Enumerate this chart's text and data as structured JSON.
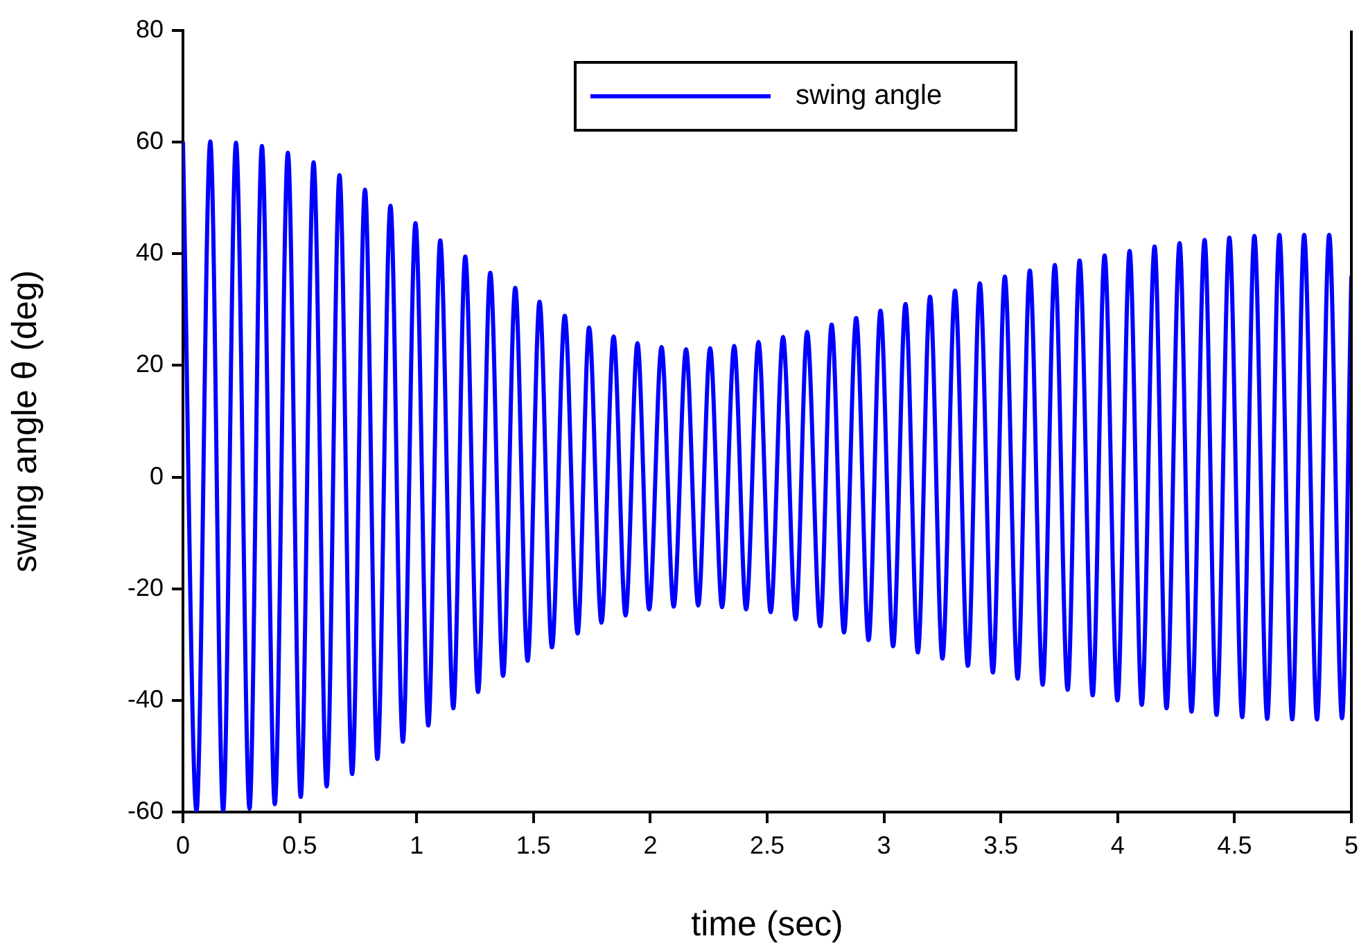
{
  "chart_data": {
    "type": "line",
    "xlabel": "time (sec)",
    "ylabel": "swing angle θ (deg)",
    "xlim": [
      0,
      5
    ],
    "xticks": [
      0,
      0.5,
      1,
      1.5,
      2,
      2.5,
      3,
      3.5,
      4,
      4.5,
      5
    ],
    "ylim": [
      -60,
      80
    ],
    "yticks": [
      -60,
      -40,
      -20,
      0,
      20,
      40,
      60,
      80
    ],
    "grid": false,
    "legend": "top",
    "marker": "none",
    "line_style": "solid",
    "series": [
      {
        "name": "swing angle",
        "color": "#0000ff",
        "x": [
          0,
          0.058,
          0.117,
          0.172,
          0.227,
          0.285,
          0.338,
          0.393,
          0.449,
          0.504,
          0.559,
          0.615,
          0.67,
          0.724,
          0.779,
          0.832,
          0.888,
          0.941,
          0.995,
          1.05,
          1.101,
          1.157,
          1.208,
          1.263,
          1.315,
          1.37,
          1.422,
          1.475,
          1.526,
          1.579,
          1.634,
          1.689,
          1.738,
          1.791,
          1.843,
          1.894,
          1.945,
          1.995,
          2.048,
          2.1,
          2.153,
          2.205,
          2.256,
          2.307,
          2.359,
          2.41,
          2.463,
          2.515,
          2.568,
          2.622,
          2.671,
          2.727,
          2.776,
          2.829,
          2.881,
          2.934,
          2.985,
          3.039,
          3.092,
          3.145,
          3.197,
          3.25,
          3.304,
          3.359,
          3.41,
          3.466,
          3.517,
          3.572,
          3.624,
          3.679,
          3.731,
          3.786,
          3.837,
          3.893,
          3.944,
          3.999,
          4.051,
          4.103,
          4.158,
          4.209,
          4.265,
          4.316,
          4.372,
          4.423,
          4.478,
          4.533,
          4.585,
          4.64,
          4.692,
          4.747,
          4.798,
          4.853,
          4.905,
          4.96,
          5.0
        ],
        "values": [
          60.1,
          -59.8,
          60.1,
          -59.8,
          59.9,
          -59.4,
          59.3,
          -58.6,
          58.1,
          -57.3,
          56.4,
          -55.4,
          54.1,
          -53.2,
          51.5,
          -50.5,
          48.6,
          -47.4,
          45.5,
          -44.5,
          42.4,
          -41.4,
          39.5,
          -38.5,
          36.6,
          -35.6,
          33.9,
          -32.9,
          31.4,
          -30.5,
          28.9,
          -28.0,
          26.8,
          -26.1,
          25.2,
          -24.8,
          24.0,
          -23.7,
          23.3,
          -23.2,
          22.9,
          -23.0,
          23.1,
          -23.3,
          23.5,
          -23.7,
          24.2,
          -24.2,
          25.1,
          -25.5,
          26.0,
          -26.7,
          27.3,
          -27.8,
          28.5,
          -29.2,
          29.8,
          -30.3,
          31.0,
          -31.4,
          32.3,
          -32.5,
          33.4,
          -33.8,
          34.7,
          -35.0,
          35.9,
          -36.1,
          37.0,
          -37.2,
          38.0,
          -38.1,
          38.8,
          -39.1,
          39.7,
          -40.0,
          40.5,
          -40.8,
          41.3,
          -41.4,
          41.9,
          -42.0,
          42.5,
          -42.6,
          42.9,
          -43.0,
          43.2,
          -43.3,
          43.4,
          -43.4,
          43.4,
          -43.4,
          43.4,
          -43.2,
          36
        ]
      }
    ]
  }
}
